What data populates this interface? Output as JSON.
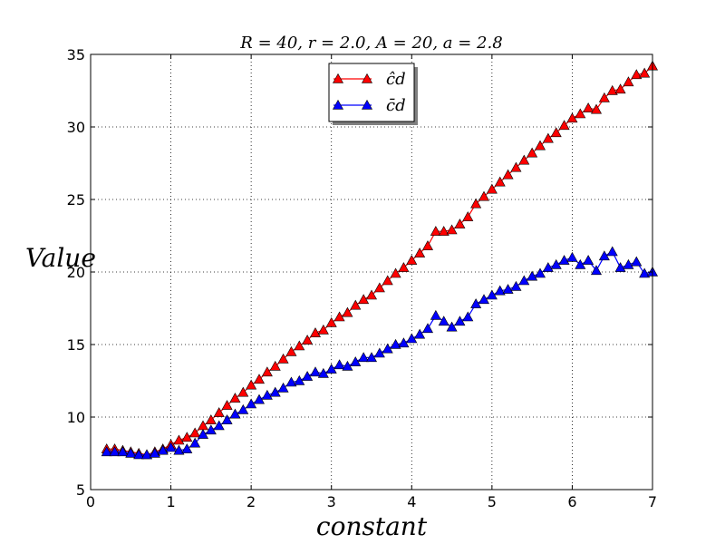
{
  "chart_data": {
    "type": "line",
    "title": "R = 40, r = 2.0, A = 20, a = 2.8",
    "xlabel": "constant",
    "ylabel": "Value",
    "xlim": [
      0,
      7
    ],
    "ylim": [
      5,
      35
    ],
    "xticks": [
      0,
      1,
      2,
      3,
      4,
      5,
      6,
      7
    ],
    "yticks": [
      5,
      10,
      15,
      20,
      25,
      30,
      35
    ],
    "grid": true,
    "legend_position": "top-center",
    "series": [
      {
        "name": "ĉd",
        "color": "#ff0000",
        "marker": "triangle",
        "x": [
          0.2,
          0.3,
          0.4,
          0.5,
          0.6,
          0.7,
          0.8,
          0.9,
          1.0,
          1.1,
          1.2,
          1.3,
          1.4,
          1.5,
          1.6,
          1.7,
          1.8,
          1.9,
          2.0,
          2.1,
          2.2,
          2.3,
          2.4,
          2.5,
          2.6,
          2.7,
          2.8,
          2.9,
          3.0,
          3.1,
          3.2,
          3.3,
          3.4,
          3.5,
          3.6,
          3.7,
          3.8,
          3.9,
          4.0,
          4.1,
          4.2,
          4.3,
          4.4,
          4.5,
          4.6,
          4.7,
          4.8,
          4.9,
          5.0,
          5.1,
          5.2,
          5.3,
          5.4,
          5.5,
          5.6,
          5.7,
          5.8,
          5.9,
          6.0,
          6.1,
          6.2,
          6.3,
          6.4,
          6.5,
          6.6,
          6.7,
          6.8,
          6.9,
          7.0
        ],
        "y": [
          7.8,
          7.8,
          7.7,
          7.6,
          7.5,
          7.4,
          7.6,
          7.8,
          8.1,
          8.4,
          8.6,
          8.9,
          9.4,
          9.8,
          10.3,
          10.8,
          11.3,
          11.7,
          12.2,
          12.6,
          13.1,
          13.5,
          14.0,
          14.5,
          14.9,
          15.3,
          15.8,
          16.0,
          16.5,
          16.9,
          17.2,
          17.7,
          18.1,
          18.4,
          18.9,
          19.4,
          19.9,
          20.3,
          20.8,
          21.3,
          21.8,
          22.8,
          22.8,
          22.9,
          23.3,
          23.8,
          24.7,
          25.2,
          25.7,
          26.2,
          26.7,
          27.2,
          27.7,
          28.2,
          28.7,
          29.2,
          29.6,
          30.1,
          30.6,
          30.9,
          31.3,
          31.2,
          32.0,
          32.5,
          32.6,
          33.1,
          33.6,
          33.7,
          34.2
        ]
      },
      {
        "name": "c̄d",
        "color": "#0000ff",
        "marker": "triangle",
        "x": [
          0.2,
          0.3,
          0.4,
          0.5,
          0.6,
          0.7,
          0.8,
          0.9,
          1.0,
          1.1,
          1.2,
          1.3,
          1.4,
          1.5,
          1.6,
          1.7,
          1.8,
          1.9,
          2.0,
          2.1,
          2.2,
          2.3,
          2.4,
          2.5,
          2.6,
          2.7,
          2.8,
          2.9,
          3.0,
          3.1,
          3.2,
          3.3,
          3.4,
          3.5,
          3.6,
          3.7,
          3.8,
          3.9,
          4.0,
          4.1,
          4.2,
          4.3,
          4.4,
          4.5,
          4.6,
          4.7,
          4.8,
          4.9,
          5.0,
          5.1,
          5.2,
          5.3,
          5.4,
          5.5,
          5.6,
          5.7,
          5.8,
          5.9,
          6.0,
          6.1,
          6.2,
          6.3,
          6.4,
          6.5,
          6.6,
          6.7,
          6.8,
          6.9,
          7.0
        ],
        "y": [
          7.6,
          7.6,
          7.6,
          7.5,
          7.4,
          7.4,
          7.5,
          7.7,
          7.9,
          7.7,
          7.8,
          8.2,
          8.8,
          9.1,
          9.4,
          9.8,
          10.2,
          10.5,
          10.9,
          11.2,
          11.5,
          11.7,
          12.0,
          12.4,
          12.5,
          12.8,
          13.1,
          13.0,
          13.3,
          13.6,
          13.5,
          13.8,
          14.1,
          14.1,
          14.4,
          14.7,
          15.0,
          15.1,
          15.4,
          15.7,
          16.1,
          17.0,
          16.6,
          16.2,
          16.6,
          16.9,
          17.8,
          18.1,
          18.4,
          18.7,
          18.8,
          19.0,
          19.4,
          19.7,
          19.9,
          20.3,
          20.5,
          20.8,
          21.0,
          20.5,
          20.8,
          20.1,
          21.1,
          21.4,
          20.3,
          20.5,
          20.7,
          19.9,
          20.0
        ]
      }
    ]
  }
}
